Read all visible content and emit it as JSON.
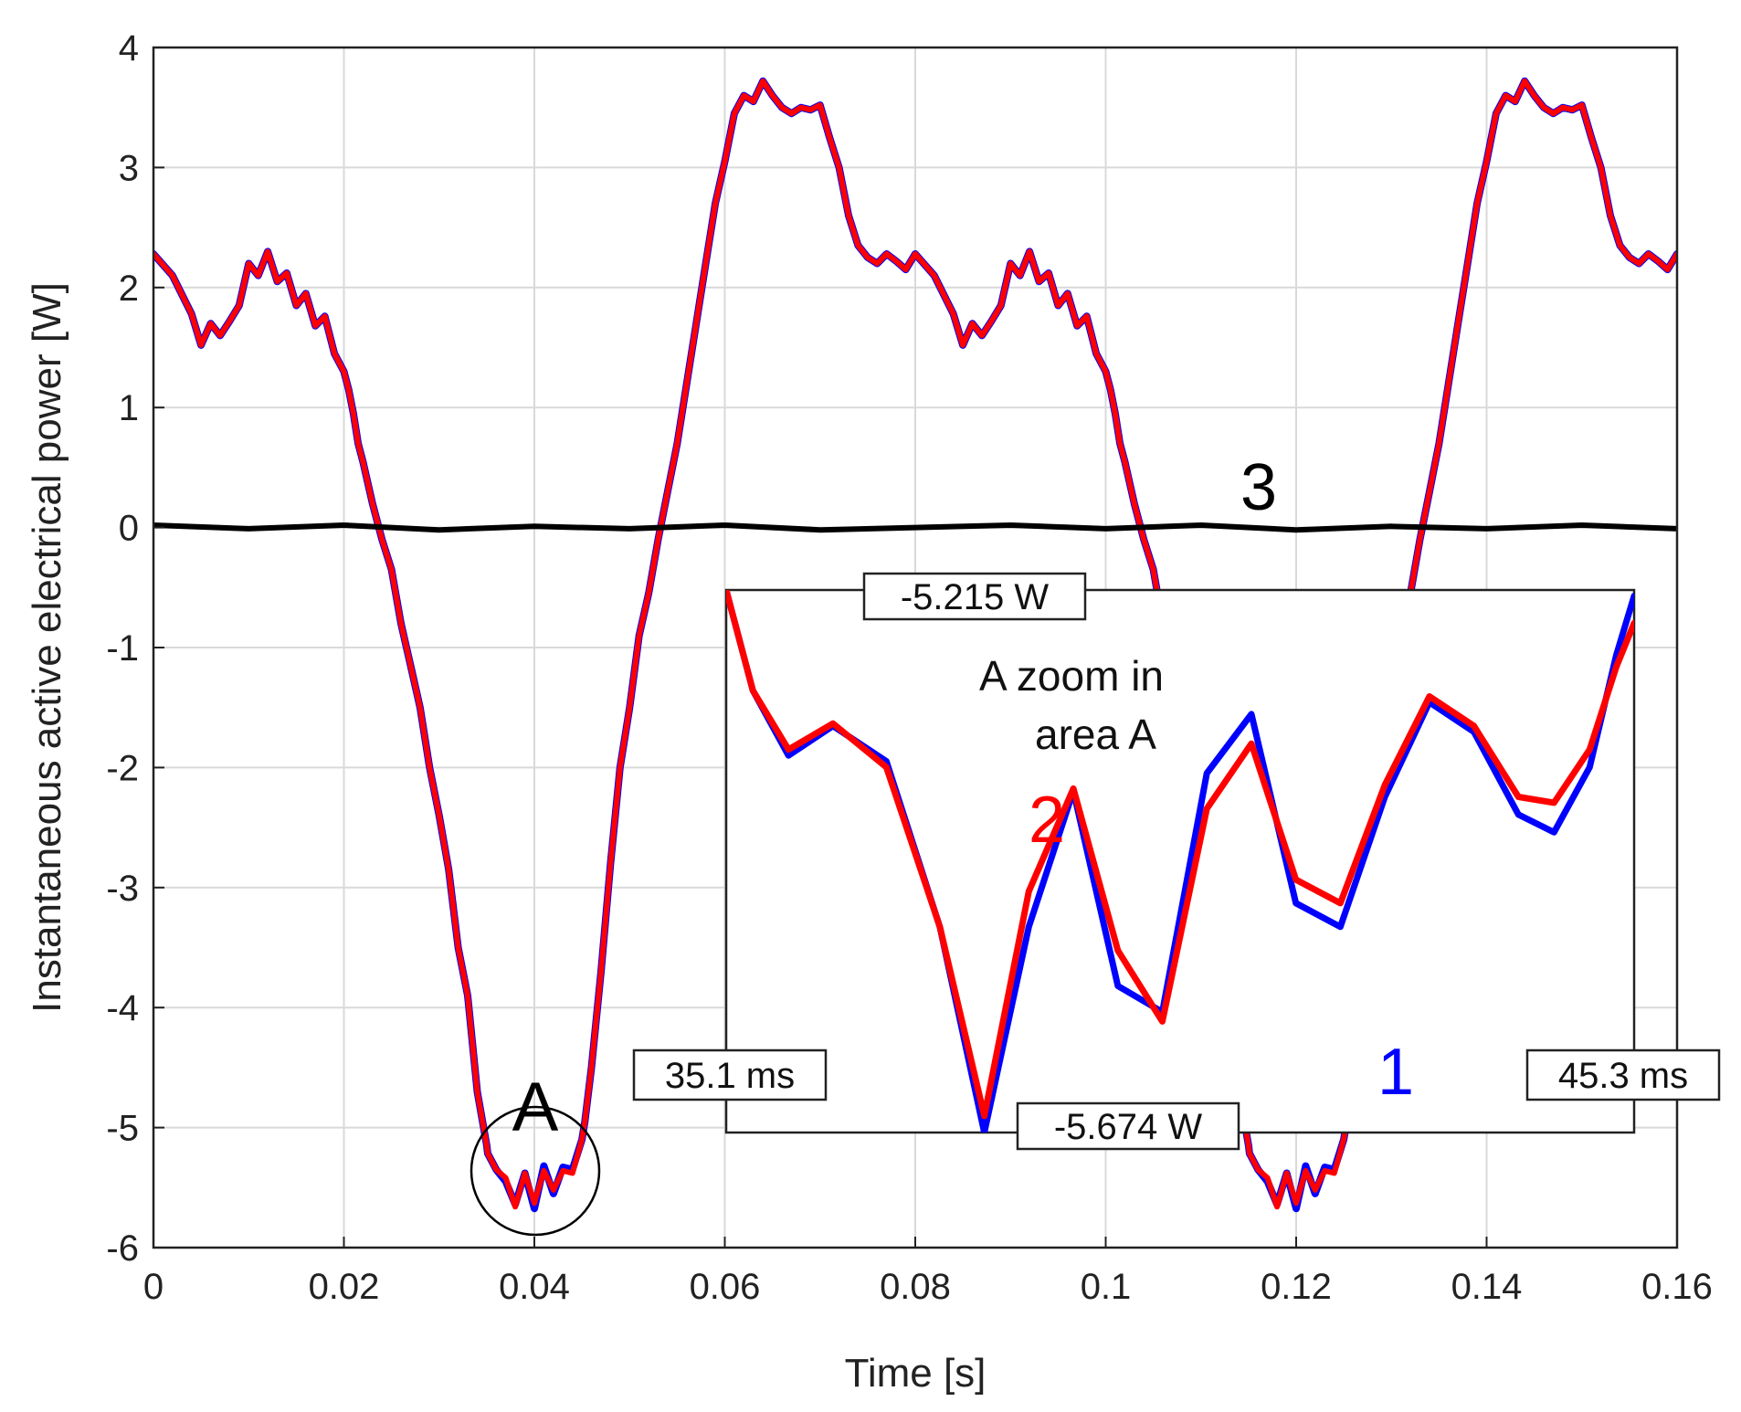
{
  "chart_data": {
    "type": "line",
    "main": {
      "xlabel": "Time [s]",
      "ylabel": "Instantaneous active electrical power [W]",
      "xlim": [
        0,
        0.16
      ],
      "ylim": [
        -6,
        4
      ],
      "xticks": [
        0,
        0.02,
        0.04,
        0.06,
        0.08,
        0.1,
        0.12,
        0.14,
        0.16
      ],
      "xtick_labels": [
        "0",
        "0.02",
        "0.04",
        "0.06",
        "0.08",
        "0.1",
        "0.12",
        "0.14",
        "0.16"
      ],
      "yticks": [
        -6,
        -5,
        -4,
        -3,
        -2,
        -1,
        0,
        1,
        2,
        3,
        4
      ],
      "ytick_labels": [
        "-6",
        "-5",
        "-4",
        "-3",
        "-2",
        "-1",
        "0",
        "1",
        "2",
        "3",
        "4"
      ],
      "grid": true,
      "period": 0.08,
      "series": [
        {
          "label": "1",
          "color": "#0000ff",
          "x": [
            0,
            0.002,
            0.004,
            0.005,
            0.006,
            0.007,
            0.008,
            0.009,
            0.01,
            0.011,
            0.012,
            0.013,
            0.014,
            0.015,
            0.016,
            0.017,
            0.018,
            0.019,
            0.02,
            0.0205,
            0.021,
            0.0215,
            0.022,
            0.023,
            0.024,
            0.025,
            0.026,
            0.027,
            0.028,
            0.029,
            0.03,
            0.031,
            0.032,
            0.033,
            0.034,
            0.035,
            0.0351,
            0.036,
            0.037,
            0.038,
            0.039,
            0.04,
            0.041,
            0.042,
            0.043,
            0.044,
            0.045,
            0.0453,
            0.046,
            0.047,
            0.048,
            0.049,
            0.05,
            0.051,
            0.052,
            0.053,
            0.054,
            0.055,
            0.056,
            0.057,
            0.058,
            0.059,
            0.06,
            0.061,
            0.062,
            0.063,
            0.064,
            0.065,
            0.066,
            0.067,
            0.068,
            0.069,
            0.07,
            0.071,
            0.072,
            0.073,
            0.074,
            0.075,
            0.076,
            0.077,
            0.078,
            0.079,
            0.08
          ],
          "y": [
            2.28,
            2.1,
            1.78,
            1.52,
            1.7,
            1.6,
            1.72,
            1.85,
            2.2,
            2.1,
            2.3,
            2.05,
            2.12,
            1.85,
            1.95,
            1.68,
            1.76,
            1.45,
            1.3,
            1.15,
            0.95,
            0.7,
            0.55,
            0.2,
            -0.1,
            -0.35,
            -0.8,
            -1.15,
            -1.5,
            -2.0,
            -2.4,
            -2.85,
            -3.5,
            -3.9,
            -4.7,
            -5.15,
            -5.215,
            -5.35,
            -5.45,
            -5.64,
            -5.38,
            -5.674,
            -5.32,
            -5.55,
            -5.33,
            -5.35,
            -5.1,
            -4.95,
            -4.5,
            -3.7,
            -2.8,
            -2.0,
            -1.5,
            -0.9,
            -0.55,
            -0.1,
            0.3,
            0.7,
            1.2,
            1.7,
            2.2,
            2.7,
            3.05,
            3.45,
            3.6,
            3.55,
            3.72,
            3.6,
            3.5,
            3.45,
            3.5,
            3.48,
            3.52,
            3.25,
            3.0,
            2.6,
            2.35,
            2.25,
            2.2,
            2.28,
            2.22,
            2.15,
            2.28
          ]
        },
        {
          "label": "2",
          "color": "#ff0000",
          "x": [
            0,
            0.002,
            0.004,
            0.005,
            0.006,
            0.007,
            0.008,
            0.009,
            0.01,
            0.011,
            0.012,
            0.013,
            0.014,
            0.015,
            0.016,
            0.017,
            0.018,
            0.019,
            0.02,
            0.0205,
            0.021,
            0.0215,
            0.022,
            0.023,
            0.024,
            0.025,
            0.026,
            0.027,
            0.028,
            0.029,
            0.03,
            0.031,
            0.032,
            0.033,
            0.034,
            0.035,
            0.0351,
            0.036,
            0.037,
            0.038,
            0.039,
            0.04,
            0.041,
            0.042,
            0.043,
            0.044,
            0.045,
            0.0453,
            0.046,
            0.047,
            0.048,
            0.049,
            0.05,
            0.051,
            0.052,
            0.053,
            0.054,
            0.055,
            0.056,
            0.057,
            0.058,
            0.059,
            0.06,
            0.061,
            0.062,
            0.063,
            0.064,
            0.065,
            0.066,
            0.067,
            0.068,
            0.069,
            0.07,
            0.071,
            0.072,
            0.073,
            0.074,
            0.075,
            0.076,
            0.077,
            0.078,
            0.079,
            0.08
          ],
          "y": [
            2.28,
            2.1,
            1.78,
            1.52,
            1.7,
            1.6,
            1.72,
            1.85,
            2.2,
            2.1,
            2.3,
            2.05,
            2.12,
            1.85,
            1.95,
            1.68,
            1.76,
            1.45,
            1.3,
            1.15,
            0.95,
            0.7,
            0.55,
            0.2,
            -0.1,
            -0.35,
            -0.8,
            -1.15,
            -1.5,
            -2.0,
            -2.4,
            -2.85,
            -3.5,
            -3.9,
            -4.7,
            -5.15,
            -5.215,
            -5.35,
            -5.42,
            -5.66,
            -5.38,
            -5.63,
            -5.36,
            -5.52,
            -5.36,
            -5.38,
            -5.1,
            -4.95,
            -4.5,
            -3.7,
            -2.8,
            -2.0,
            -1.5,
            -0.9,
            -0.55,
            -0.1,
            0.3,
            0.7,
            1.2,
            1.7,
            2.2,
            2.7,
            3.05,
            3.45,
            3.6,
            3.55,
            3.72,
            3.6,
            3.5,
            3.45,
            3.5,
            3.48,
            3.52,
            3.25,
            3.0,
            2.6,
            2.35,
            2.25,
            2.2,
            2.28,
            2.22,
            2.15,
            2.28
          ]
        },
        {
          "label": "3",
          "color": "#000000",
          "x": [
            0,
            0.01,
            0.02,
            0.03,
            0.04,
            0.05,
            0.06,
            0.07,
            0.08,
            0.09,
            0.1,
            0.11,
            0.12,
            0.13,
            0.14,
            0.15,
            0.16
          ],
          "y": [
            0.02,
            -0.01,
            0.02,
            -0.02,
            0.01,
            -0.01,
            0.02,
            -0.02,
            0.0,
            0.02,
            -0.01,
            0.02,
            -0.02,
            0.01,
            -0.01,
            0.02,
            -0.01
          ]
        }
      ]
    },
    "inset": {
      "title_lines": [
        "A zoom in",
        "area A"
      ],
      "x_start_label": "35.1 ms",
      "x_end_label": "45.3 ms",
      "y_top_label": "-5.215 W",
      "y_bottom_label": "-5.674 W",
      "xlim": [
        35.1,
        45.3
      ],
      "ylim": [
        -5.674,
        -5.215
      ],
      "series": [
        {
          "label": "1",
          "color": "#0000ff",
          "x": [
            35.1,
            35.4,
            35.8,
            36.3,
            36.9,
            37.5,
            38.0,
            38.5,
            39.0,
            39.5,
            40.0,
            40.5,
            41.0,
            41.5,
            42.0,
            42.5,
            43.0,
            43.5,
            44.0,
            44.4,
            44.8,
            45.1,
            45.3
          ],
          "y": [
            -5.215,
            -5.3,
            -5.355,
            -5.33,
            -5.36,
            -5.5,
            -5.674,
            -5.5,
            -5.385,
            -5.55,
            -5.572,
            -5.37,
            -5.32,
            -5.48,
            -5.5,
            -5.39,
            -5.31,
            -5.335,
            -5.405,
            -5.42,
            -5.365,
            -5.27,
            -5.22
          ]
        },
        {
          "label": "2",
          "color": "#ff0000",
          "x": [
            35.1,
            35.4,
            35.8,
            36.3,
            36.9,
            37.5,
            38.0,
            38.5,
            39.0,
            39.5,
            40.0,
            40.5,
            41.0,
            41.5,
            42.0,
            42.5,
            43.0,
            43.5,
            44.0,
            44.4,
            44.8,
            45.1,
            45.3
          ],
          "y": [
            -5.215,
            -5.3,
            -5.35,
            -5.328,
            -5.365,
            -5.5,
            -5.66,
            -5.47,
            -5.383,
            -5.52,
            -5.58,
            -5.4,
            -5.345,
            -5.46,
            -5.48,
            -5.38,
            -5.305,
            -5.33,
            -5.39,
            -5.395,
            -5.35,
            -5.28,
            -5.243
          ]
        }
      ]
    },
    "annotations": {
      "circle_label": "A",
      "curve_labels": [
        "1",
        "2",
        "3"
      ]
    }
  }
}
